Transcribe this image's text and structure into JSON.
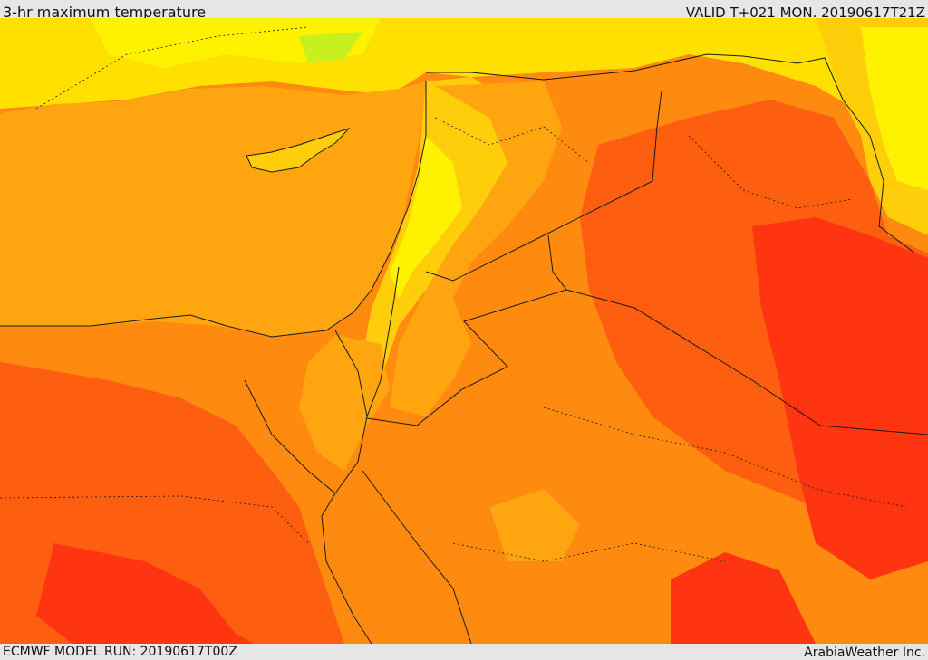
{
  "header": {
    "title": "3-hr maximum temperature",
    "valid": "VALID T+021 MON. 20190617T21Z"
  },
  "footer": {
    "model_run": "ECMWF MODEL RUN: 20190617T00Z",
    "credit": "ArabiaWeather Inc."
  },
  "map": {
    "field": "3-hr maximum temperature",
    "palette": {
      "very_hot": "#fe3510",
      "hot": "#fe5e10",
      "warm": "#fe8a10",
      "mild_warm": "#fea510",
      "mild": "#ffce0a",
      "cool": "#fff200",
      "cooler": "#c8f01e",
      "land_border": "#1a1a1a"
    }
  }
}
